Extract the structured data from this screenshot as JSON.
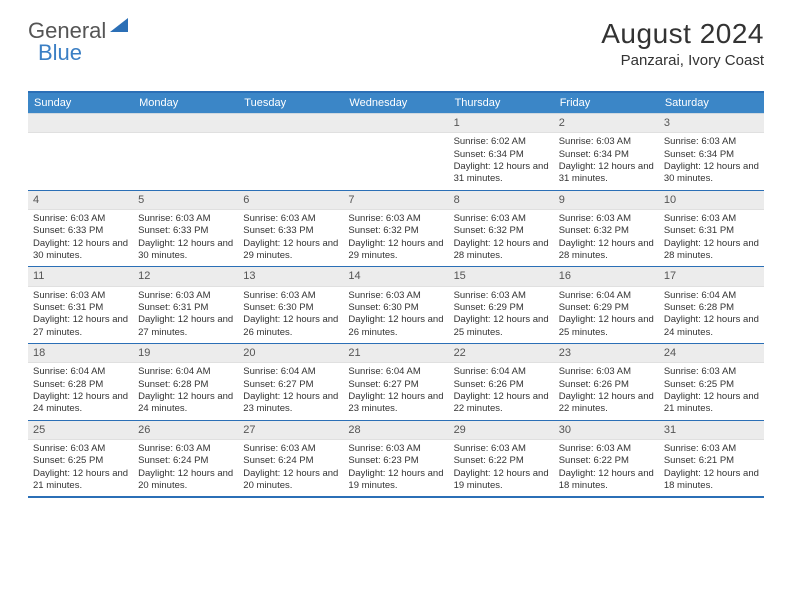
{
  "brand": {
    "part1": "General",
    "part2": "Blue"
  },
  "title": {
    "month": "August 2024",
    "location": "Panzarai, Ivory Coast"
  },
  "colors": {
    "header_bar": "#3b86c7",
    "rule": "#2b6fb6",
    "daynum_bg": "#ececec"
  },
  "weekdays": [
    "Sunday",
    "Monday",
    "Tuesday",
    "Wednesday",
    "Thursday",
    "Friday",
    "Saturday"
  ],
  "weeks": [
    [
      {
        "num": "",
        "sunrise": "",
        "sunset": "",
        "daylight": ""
      },
      {
        "num": "",
        "sunrise": "",
        "sunset": "",
        "daylight": ""
      },
      {
        "num": "",
        "sunrise": "",
        "sunset": "",
        "daylight": ""
      },
      {
        "num": "",
        "sunrise": "",
        "sunset": "",
        "daylight": ""
      },
      {
        "num": "1",
        "sunrise": "Sunrise: 6:02 AM",
        "sunset": "Sunset: 6:34 PM",
        "daylight": "Daylight: 12 hours and 31 minutes."
      },
      {
        "num": "2",
        "sunrise": "Sunrise: 6:03 AM",
        "sunset": "Sunset: 6:34 PM",
        "daylight": "Daylight: 12 hours and 31 minutes."
      },
      {
        "num": "3",
        "sunrise": "Sunrise: 6:03 AM",
        "sunset": "Sunset: 6:34 PM",
        "daylight": "Daylight: 12 hours and 30 minutes."
      }
    ],
    [
      {
        "num": "4",
        "sunrise": "Sunrise: 6:03 AM",
        "sunset": "Sunset: 6:33 PM",
        "daylight": "Daylight: 12 hours and 30 minutes."
      },
      {
        "num": "5",
        "sunrise": "Sunrise: 6:03 AM",
        "sunset": "Sunset: 6:33 PM",
        "daylight": "Daylight: 12 hours and 30 minutes."
      },
      {
        "num": "6",
        "sunrise": "Sunrise: 6:03 AM",
        "sunset": "Sunset: 6:33 PM",
        "daylight": "Daylight: 12 hours and 29 minutes."
      },
      {
        "num": "7",
        "sunrise": "Sunrise: 6:03 AM",
        "sunset": "Sunset: 6:32 PM",
        "daylight": "Daylight: 12 hours and 29 minutes."
      },
      {
        "num": "8",
        "sunrise": "Sunrise: 6:03 AM",
        "sunset": "Sunset: 6:32 PM",
        "daylight": "Daylight: 12 hours and 28 minutes."
      },
      {
        "num": "9",
        "sunrise": "Sunrise: 6:03 AM",
        "sunset": "Sunset: 6:32 PM",
        "daylight": "Daylight: 12 hours and 28 minutes."
      },
      {
        "num": "10",
        "sunrise": "Sunrise: 6:03 AM",
        "sunset": "Sunset: 6:31 PM",
        "daylight": "Daylight: 12 hours and 28 minutes."
      }
    ],
    [
      {
        "num": "11",
        "sunrise": "Sunrise: 6:03 AM",
        "sunset": "Sunset: 6:31 PM",
        "daylight": "Daylight: 12 hours and 27 minutes."
      },
      {
        "num": "12",
        "sunrise": "Sunrise: 6:03 AM",
        "sunset": "Sunset: 6:31 PM",
        "daylight": "Daylight: 12 hours and 27 minutes."
      },
      {
        "num": "13",
        "sunrise": "Sunrise: 6:03 AM",
        "sunset": "Sunset: 6:30 PM",
        "daylight": "Daylight: 12 hours and 26 minutes."
      },
      {
        "num": "14",
        "sunrise": "Sunrise: 6:03 AM",
        "sunset": "Sunset: 6:30 PM",
        "daylight": "Daylight: 12 hours and 26 minutes."
      },
      {
        "num": "15",
        "sunrise": "Sunrise: 6:03 AM",
        "sunset": "Sunset: 6:29 PM",
        "daylight": "Daylight: 12 hours and 25 minutes."
      },
      {
        "num": "16",
        "sunrise": "Sunrise: 6:04 AM",
        "sunset": "Sunset: 6:29 PM",
        "daylight": "Daylight: 12 hours and 25 minutes."
      },
      {
        "num": "17",
        "sunrise": "Sunrise: 6:04 AM",
        "sunset": "Sunset: 6:28 PM",
        "daylight": "Daylight: 12 hours and 24 minutes."
      }
    ],
    [
      {
        "num": "18",
        "sunrise": "Sunrise: 6:04 AM",
        "sunset": "Sunset: 6:28 PM",
        "daylight": "Daylight: 12 hours and 24 minutes."
      },
      {
        "num": "19",
        "sunrise": "Sunrise: 6:04 AM",
        "sunset": "Sunset: 6:28 PM",
        "daylight": "Daylight: 12 hours and 24 minutes."
      },
      {
        "num": "20",
        "sunrise": "Sunrise: 6:04 AM",
        "sunset": "Sunset: 6:27 PM",
        "daylight": "Daylight: 12 hours and 23 minutes."
      },
      {
        "num": "21",
        "sunrise": "Sunrise: 6:04 AM",
        "sunset": "Sunset: 6:27 PM",
        "daylight": "Daylight: 12 hours and 23 minutes."
      },
      {
        "num": "22",
        "sunrise": "Sunrise: 6:04 AM",
        "sunset": "Sunset: 6:26 PM",
        "daylight": "Daylight: 12 hours and 22 minutes."
      },
      {
        "num": "23",
        "sunrise": "Sunrise: 6:03 AM",
        "sunset": "Sunset: 6:26 PM",
        "daylight": "Daylight: 12 hours and 22 minutes."
      },
      {
        "num": "24",
        "sunrise": "Sunrise: 6:03 AM",
        "sunset": "Sunset: 6:25 PM",
        "daylight": "Daylight: 12 hours and 21 minutes."
      }
    ],
    [
      {
        "num": "25",
        "sunrise": "Sunrise: 6:03 AM",
        "sunset": "Sunset: 6:25 PM",
        "daylight": "Daylight: 12 hours and 21 minutes."
      },
      {
        "num": "26",
        "sunrise": "Sunrise: 6:03 AM",
        "sunset": "Sunset: 6:24 PM",
        "daylight": "Daylight: 12 hours and 20 minutes."
      },
      {
        "num": "27",
        "sunrise": "Sunrise: 6:03 AM",
        "sunset": "Sunset: 6:24 PM",
        "daylight": "Daylight: 12 hours and 20 minutes."
      },
      {
        "num": "28",
        "sunrise": "Sunrise: 6:03 AM",
        "sunset": "Sunset: 6:23 PM",
        "daylight": "Daylight: 12 hours and 19 minutes."
      },
      {
        "num": "29",
        "sunrise": "Sunrise: 6:03 AM",
        "sunset": "Sunset: 6:22 PM",
        "daylight": "Daylight: 12 hours and 19 minutes."
      },
      {
        "num": "30",
        "sunrise": "Sunrise: 6:03 AM",
        "sunset": "Sunset: 6:22 PM",
        "daylight": "Daylight: 12 hours and 18 minutes."
      },
      {
        "num": "31",
        "sunrise": "Sunrise: 6:03 AM",
        "sunset": "Sunset: 6:21 PM",
        "daylight": "Daylight: 12 hours and 18 minutes."
      }
    ]
  ]
}
